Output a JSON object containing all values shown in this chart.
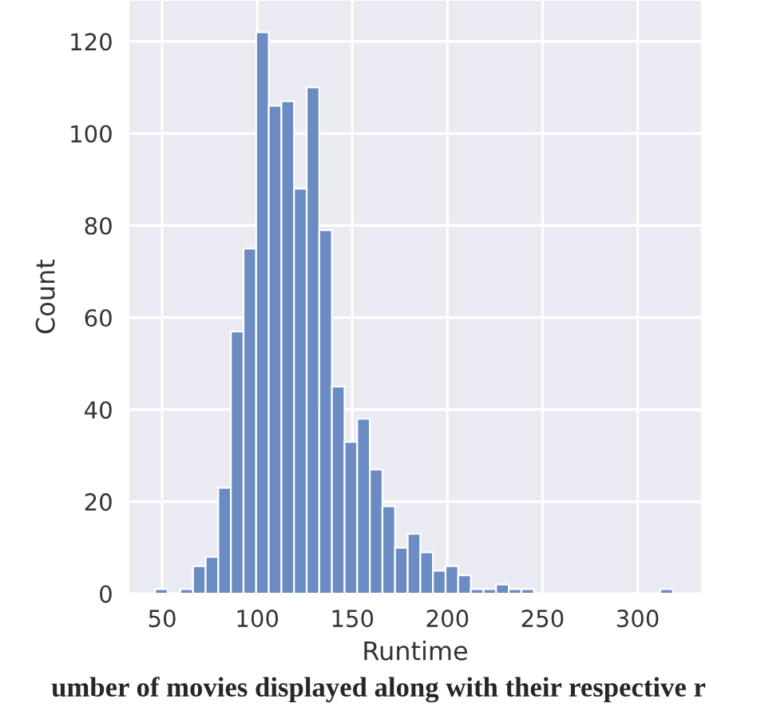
{
  "chart_data": {
    "type": "histogram",
    "xlabel": "Runtime",
    "ylabel": "Count",
    "color": "#6b8cc2",
    "bins": [
      46.3,
      52.94,
      59.58,
      66.22,
      72.86,
      79.5,
      86.14,
      92.78,
      99.42,
      106.06,
      112.7,
      119.34,
      125.98,
      132.62,
      139.26,
      145.9,
      152.54,
      159.18,
      165.82,
      172.46,
      179.1,
      185.74,
      192.38,
      199.02,
      205.66,
      212.3,
      218.94,
      225.58,
      232.22,
      238.86,
      245.5,
      252.14,
      258.78,
      265.42,
      272.06,
      278.7,
      285.34,
      291.98,
      298.62,
      305.26,
      311.9,
      318.54
    ],
    "values": [
      1,
      0,
      1,
      6,
      8,
      23,
      57,
      75,
      122,
      106,
      107,
      88,
      110,
      79,
      45,
      33,
      38,
      27,
      19,
      10,
      13,
      9,
      5,
      6,
      4,
      1,
      1,
      2,
      1,
      1,
      0,
      0,
      0,
      0,
      0,
      0,
      0,
      0,
      0,
      0,
      1
    ],
    "xlim": [
      32.4,
      333.7
    ],
    "ylim": [
      0,
      129
    ],
    "xticks": [
      50,
      100,
      150,
      200,
      250,
      300
    ],
    "yticks": [
      0,
      20,
      40,
      60,
      80,
      100,
      120
    ],
    "grid": true,
    "annotations": [
      "umber of movies displayed along with their respective r"
    ]
  }
}
